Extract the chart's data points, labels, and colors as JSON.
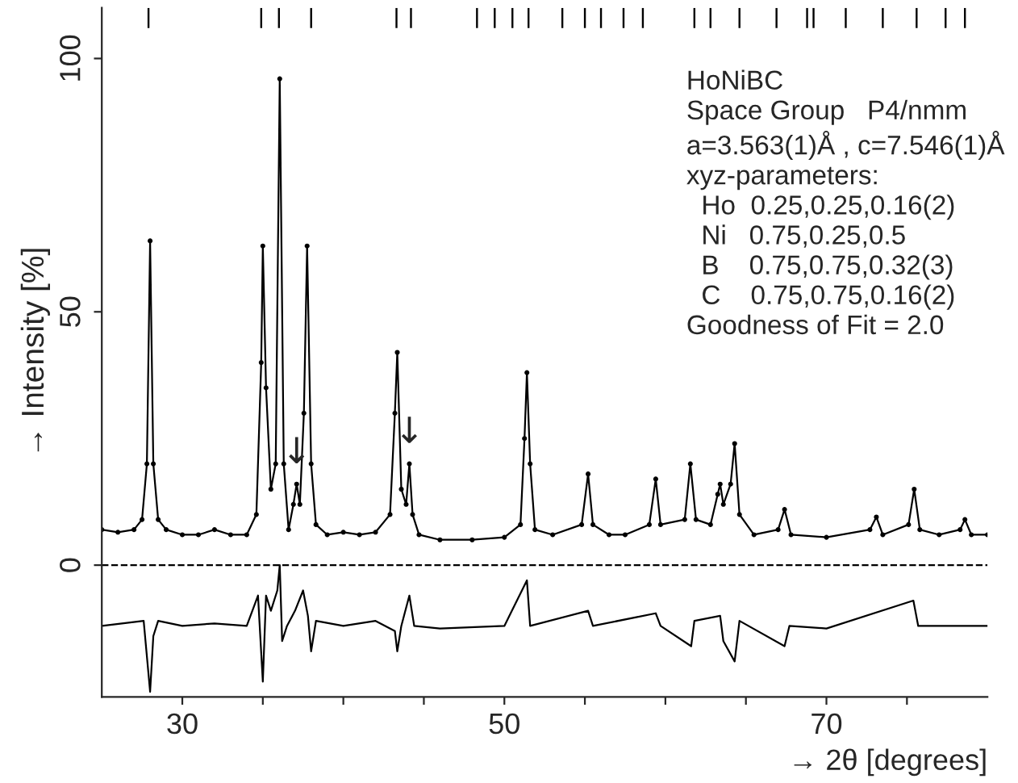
{
  "chart_data": {
    "type": "line",
    "xlabel": "→ 2θ [degrees]",
    "ylabel": "→ Intensity [%]",
    "xlim": [
      25,
      80
    ],
    "ylim": [
      -26,
      110
    ],
    "xticks": [
      {
        "value": 30,
        "label": "30"
      },
      {
        "value": 35,
        "label": null
      },
      {
        "value": 40,
        "label": null
      },
      {
        "value": 45,
        "label": null
      },
      {
        "value": 50,
        "label": "50"
      },
      {
        "value": 55,
        "label": null
      },
      {
        "value": 60,
        "label": null
      },
      {
        "value": 65,
        "label": null
      },
      {
        "value": 70,
        "label": "70"
      },
      {
        "value": 75,
        "label": null
      }
    ],
    "yticks": [
      0,
      50,
      100
    ],
    "grid": false,
    "legend": false,
    "ref_lines": [
      {
        "axis": "y",
        "value": 0,
        "line_style": "dashed",
        "color": "#000000"
      }
    ],
    "annotations": [
      "HoNiBC\nSpace Group   P4/nmm\na=3.563(1)Å , c=7.546(1)Å\nxyz-parameters:\n  Ho  0.25,0.25,0.16(2)\n  Ni   0.75,0.25,0.5\n  B    0.75,0.75,0.32(3)\n  C    0.75,0.75,0.16(2)\nGoodness of Fit = 2.0",
      {
        "text": "↓",
        "x": 37.1,
        "y": 16
      },
      {
        "text": "↓",
        "x": 44.1,
        "y": 20
      }
    ],
    "series": [
      {
        "marker": "circle",
        "color": "#000000",
        "x": [
          25,
          26,
          27,
          27.5,
          27.8,
          28.0,
          28.2,
          28.5,
          29,
          30,
          31,
          32,
          33,
          34,
          34.6,
          34.9,
          35.0,
          35.2,
          35.5,
          35.8,
          36.05,
          36.3,
          36.6,
          36.9,
          37.1,
          37.3,
          37.55,
          37.75,
          38.0,
          38.3,
          39,
          40,
          41,
          42,
          42.9,
          43.2,
          43.35,
          43.6,
          43.9,
          44.1,
          44.3,
          44.7,
          46,
          48,
          50,
          51.0,
          51.25,
          51.4,
          51.6,
          51.9,
          53,
          54.8,
          55.2,
          55.5,
          56.5,
          57.5,
          59.0,
          59.4,
          59.7,
          61.2,
          61.55,
          61.9,
          62.8,
          63.25,
          63.4,
          63.6,
          64.05,
          64.3,
          64.6,
          65.5,
          67.0,
          67.4,
          67.8,
          70,
          72.7,
          73.1,
          73.5,
          75.1,
          75.45,
          75.8,
          77,
          78.3,
          78.6,
          79,
          80
        ],
        "values": [
          7,
          6.5,
          7,
          9,
          20,
          64,
          20,
          9,
          7,
          6,
          6,
          7,
          6,
          6,
          10,
          40,
          63,
          35,
          15,
          20,
          96,
          20,
          7,
          12,
          16,
          12,
          30,
          63,
          20,
          8,
          6,
          6.5,
          6,
          6.5,
          10,
          30,
          42,
          15,
          12,
          20,
          10,
          6,
          5,
          5,
          5.5,
          8,
          25,
          38,
          20,
          7,
          6,
          8,
          18,
          8,
          6,
          6,
          8,
          17,
          8,
          9,
          20,
          9,
          8,
          14,
          16,
          12,
          16,
          24,
          10,
          6,
          7,
          11,
          6,
          5.5,
          7,
          9.5,
          6,
          8,
          15,
          7,
          6,
          7,
          9,
          6,
          6
        ]
      },
      {
        "marker": "none",
        "color": "#000000",
        "x": [
          25,
          27.6,
          28.0,
          28.2,
          28.5,
          30,
          32,
          34,
          34.7,
          35.0,
          35.2,
          35.5,
          35.9,
          36.05,
          36.2,
          36.5,
          37,
          37.5,
          37.8,
          38.0,
          38.3,
          40,
          42,
          43.2,
          43.35,
          43.6,
          44.1,
          44.4,
          46,
          50,
          51.4,
          51.6,
          55.2,
          55.5,
          59.4,
          59.7,
          61.6,
          61.8,
          63.4,
          63.6,
          64.3,
          64.6,
          67.4,
          67.7,
          70,
          75.4,
          75.7,
          80
        ],
        "values": [
          -12,
          -11,
          -25,
          -14,
          -11,
          -12,
          -11.5,
          -12,
          -6,
          -23,
          -6,
          -9,
          -5,
          0,
          -15,
          -12,
          -9,
          -5,
          -10,
          -17,
          -11,
          -12,
          -11,
          -13,
          -17,
          -12,
          -6,
          -12,
          -12.5,
          -12,
          -3,
          -12,
          -9,
          -12,
          -9.5,
          -12,
          -16,
          -11,
          -10,
          -15,
          -19,
          -11,
          -16,
          -12,
          -12.5,
          -7,
          -12,
          -12
        ]
      },
      {
        "type": "bar",
        "color": "#000000",
        "base": [
          106,
          106,
          106,
          106,
          106,
          106,
          106,
          106,
          106,
          106,
          106,
          106,
          106,
          106,
          106,
          106,
          106,
          106,
          106,
          106,
          106,
          106,
          106,
          106,
          106,
          106
        ],
        "x": [
          27.9,
          34.9,
          36.0,
          38.0,
          43.3,
          44.2,
          48.3,
          49.4,
          50.5,
          51.5,
          53.6,
          55.0,
          56.0,
          57.4,
          58.6,
          61.8,
          62.8,
          64.6,
          66.9,
          68.8,
          69.2,
          71.2,
          73.5,
          75.6,
          77.4,
          78.6
        ],
        "values": [
          4,
          4,
          4,
          4,
          4,
          4,
          4,
          4,
          4,
          4,
          4,
          4,
          4,
          4,
          4,
          4,
          4,
          4,
          4,
          4,
          4,
          4,
          4,
          4,
          4,
          4
        ]
      }
    ]
  }
}
